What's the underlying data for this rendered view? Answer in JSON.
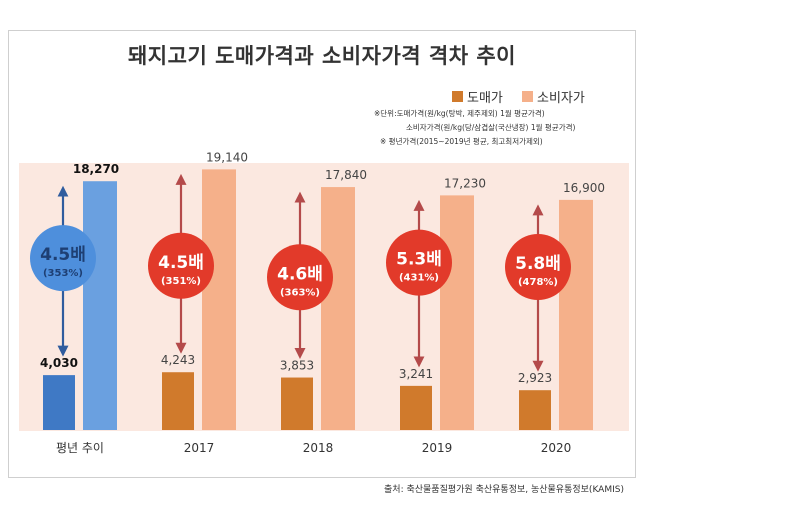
{
  "chart_data": {
    "type": "bar",
    "title": "돼지고기 도매가격과 소비자가격 격차 추이",
    "categories": [
      "평년 추이",
      "2017",
      "2018",
      "2019",
      "2020"
    ],
    "series": [
      {
        "name": "도매가",
        "color": "#d07a2c",
        "values": [
          4030,
          4243,
          3853,
          3241,
          2923
        ],
        "labels": [
          "4,030",
          "4,243",
          "3,853",
          "3,241",
          "2,923"
        ]
      },
      {
        "name": "소비자가",
        "color": "#f5b08a",
        "values": [
          18270,
          19140,
          17840,
          17230,
          16900
        ],
        "labels": [
          "18,270",
          "19,140",
          "17,840",
          "17,230",
          "16,900"
        ]
      }
    ],
    "first_category_colors": {
      "wholesale": "#3f79c5",
      "consumer": "#6aa0e0"
    },
    "ratios": [
      {
        "main": "4.5배",
        "sub": "(353%)",
        "color": "#4e8fdc",
        "arrow": "#2f5c9e"
      },
      {
        "main": "4.5배",
        "sub": "(351%)",
        "color": "#e23a2a",
        "arrow": "#b44a4a"
      },
      {
        "main": "4.6배",
        "sub": "(363%)",
        "color": "#e23a2a",
        "arrow": "#b44a4a"
      },
      {
        "main": "5.3배",
        "sub": "(431%)",
        "color": "#e23a2a",
        "arrow": "#b44a4a"
      },
      {
        "main": "5.8배",
        "sub": "(478%)",
        "color": "#e23a2a",
        "arrow": "#b44a4a"
      }
    ],
    "ylim": [
      0,
      20000
    ]
  },
  "legend": {
    "wholesale": "도매가",
    "consumer": "소비자가",
    "wholesale_color": "#d07a2c",
    "consumer_color": "#f5b08a"
  },
  "notes": [
    "※단위:도매가격(원/kg(탕박, 제주제외) 1월 평균가격)",
    "소비자가격(원/kg(당/삼겹살(국산냉장) 1월 평균가격)",
    "※ 평년가격(2015~2019년 평균, 최고최저가제외)"
  ],
  "source": "출처: 축산물품질평가원 축산유통정보, 농산물유통정보(KAMIS)"
}
